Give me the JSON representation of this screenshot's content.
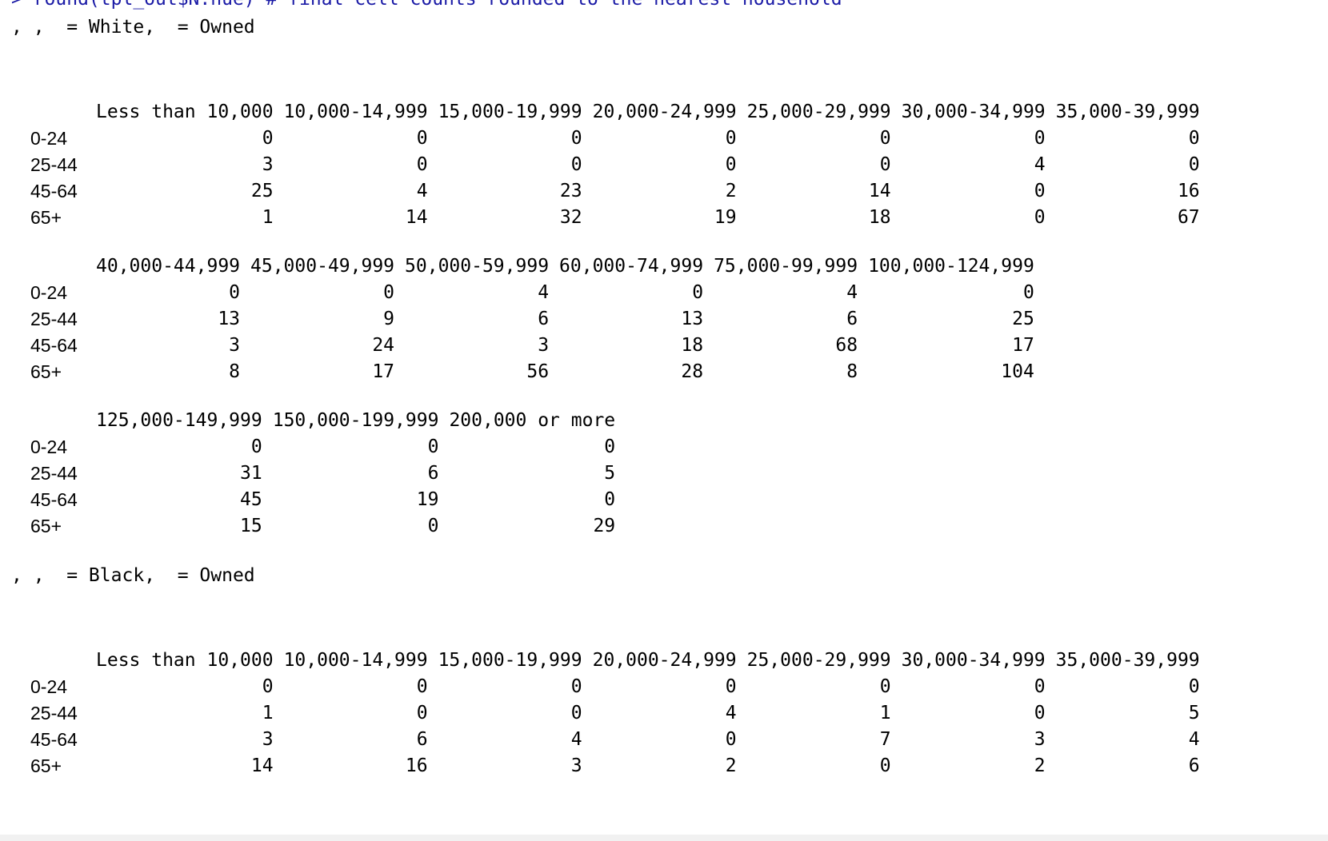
{
  "console": {
    "command_line": "> round(tpl_out$N.hue) # final cell counts rounded to the nearest household",
    "row_labels": [
      "0-24",
      "25-44",
      "45-64",
      "65+"
    ],
    "slices": [
      {
        "header": ", ,  = White,  = Owned",
        "blocks": [
          {
            "columns": [
              "Less than 10,000",
              "10,000-14,999",
              "15,000-19,999",
              "20,000-24,999",
              "25,000-29,999",
              "30,000-34,999",
              "35,000-39,999"
            ],
            "rows": [
              [
                "0",
                "0",
                "0",
                "0",
                "0",
                "0",
                "0"
              ],
              [
                "3",
                "0",
                "0",
                "0",
                "0",
                "4",
                "0"
              ],
              [
                "25",
                "4",
                "23",
                "2",
                "14",
                "0",
                "16"
              ],
              [
                "1",
                "14",
                "32",
                "19",
                "18",
                "0",
                "67"
              ]
            ]
          },
          {
            "columns": [
              "40,000-44,999",
              "45,000-49,999",
              "50,000-59,999",
              "60,000-74,999",
              "75,000-99,999",
              "100,000-124,999"
            ],
            "rows": [
              [
                "0",
                "0",
                "4",
                "0",
                "4",
                "0"
              ],
              [
                "13",
                "9",
                "6",
                "13",
                "6",
                "25"
              ],
              [
                "3",
                "24",
                "3",
                "18",
                "68",
                "17"
              ],
              [
                "8",
                "17",
                "56",
                "28",
                "8",
                "104"
              ]
            ]
          },
          {
            "columns": [
              "125,000-149,999",
              "150,000-199,999",
              "200,000 or more"
            ],
            "rows": [
              [
                "0",
                "0",
                "0"
              ],
              [
                "31",
                "6",
                "5"
              ],
              [
                "45",
                "19",
                "0"
              ],
              [
                "15",
                "0",
                "29"
              ]
            ]
          }
        ]
      },
      {
        "header": ", ,  = Black,  = Owned",
        "blocks": [
          {
            "columns": [
              "Less than 10,000",
              "10,000-14,999",
              "15,000-19,999",
              "20,000-24,999",
              "25,000-29,999",
              "30,000-34,999",
              "35,000-39,999"
            ],
            "rows": [
              [
                "0",
                "0",
                "0",
                "0",
                "0",
                "0",
                "0"
              ],
              [
                "1",
                "0",
                "0",
                "4",
                "1",
                "0",
                "5"
              ],
              [
                "3",
                "6",
                "4",
                "0",
                "7",
                "3",
                "4"
              ],
              [
                "14",
                "16",
                "3",
                "2",
                "0",
                "2",
                "6"
              ]
            ]
          }
        ]
      }
    ]
  },
  "colors": {
    "command": "#1a1aa6",
    "text": "#000000",
    "background": "#ffffff"
  }
}
